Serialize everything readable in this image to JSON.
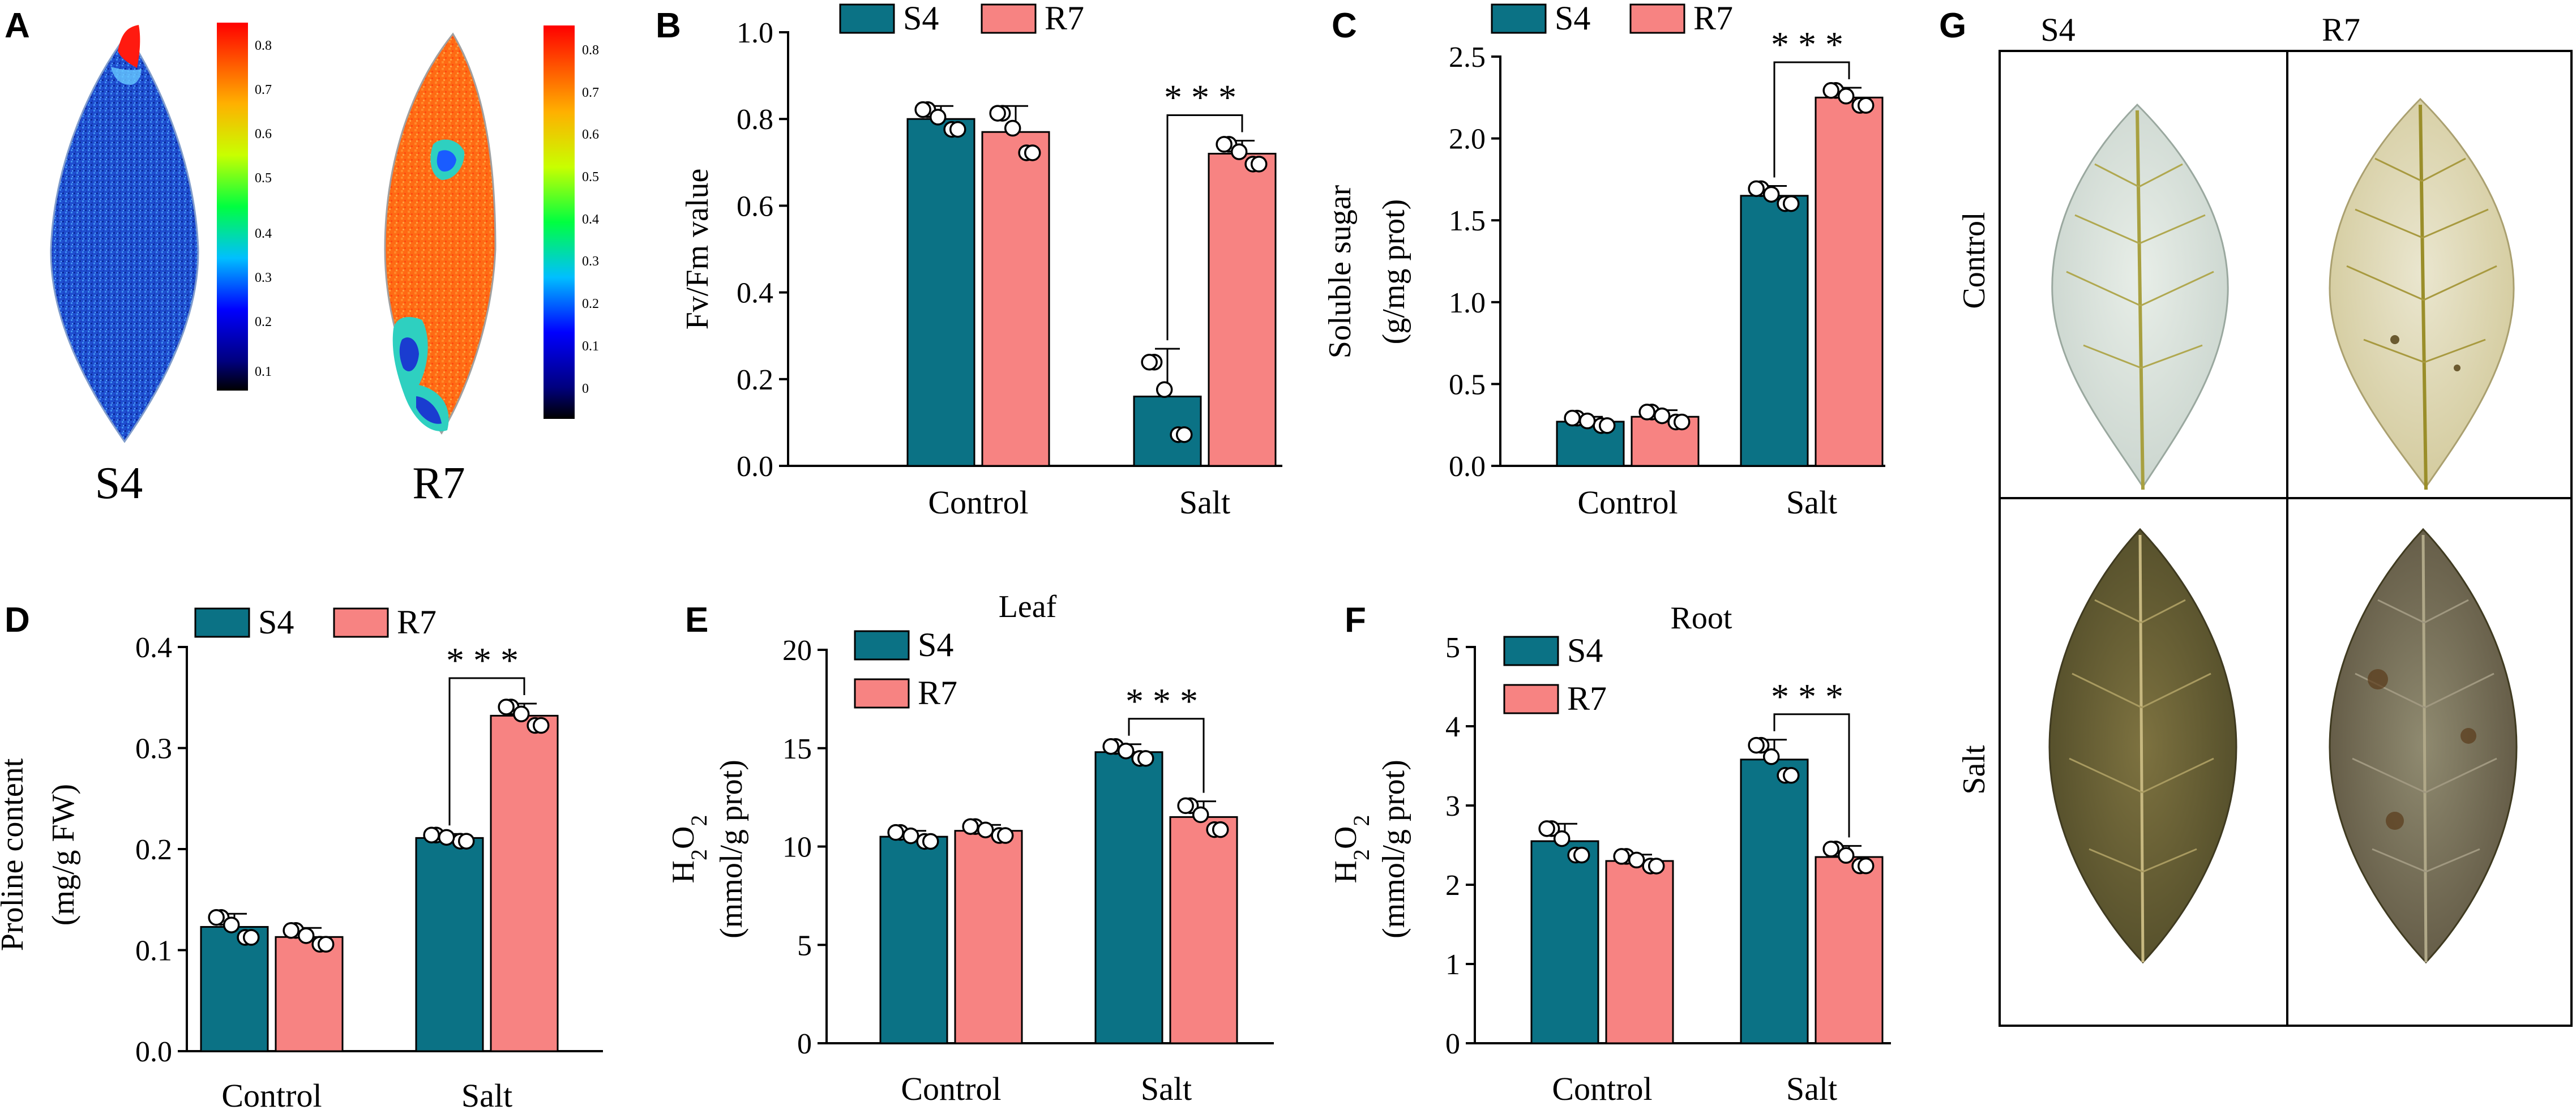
{
  "colors": {
    "S4": "#0b7285",
    "R7": "#f78382",
    "axis": "#000000"
  },
  "panel_a": {
    "letter": "A",
    "leaf_labels": [
      "S4",
      "R7"
    ],
    "colorbar_s4_ticks": [
      "0.8",
      "0.7",
      "0.6",
      "0.5",
      "0.4",
      "0.3",
      "0.2",
      "0.1"
    ],
    "colorbar_r7_ticks": [
      "0.8",
      "0.7",
      "0.6",
      "0.5",
      "0.4",
      "0.3",
      "0.2",
      "0.1",
      "0"
    ]
  },
  "panel_g": {
    "letter": "G",
    "column_labels": [
      "S4",
      "R7"
    ],
    "row_labels": [
      "Control",
      "Salt"
    ]
  },
  "chart_data": [
    {
      "id": "B",
      "type": "bar",
      "letter": "B",
      "title": "",
      "categories": [
        "Control",
        "Salt"
      ],
      "ylabel": [
        "Fv/Fm value"
      ],
      "ylim": [
        0,
        1.0
      ],
      "yticks": [
        "0.0",
        "0.2",
        "0.4",
        "0.6",
        "0.8",
        "1.0"
      ],
      "legend": [
        "S4",
        "R7"
      ],
      "legend_layout": "horizontal",
      "series": [
        {
          "name": "S4",
          "values": [
            0.8,
            0.16
          ],
          "errors": [
            0.03,
            0.11
          ]
        },
        {
          "name": "R7",
          "values": [
            0.77,
            0.72
          ],
          "errors": [
            0.06,
            0.03
          ]
        }
      ],
      "significance": {
        "category": "Salt",
        "label": "***"
      }
    },
    {
      "id": "C",
      "type": "bar",
      "letter": "C",
      "title": "",
      "categories": [
        "Control",
        "Salt"
      ],
      "ylabel": [
        "Soluble sugar",
        "(g/mg prot)"
      ],
      "ylim": [
        0,
        2.5
      ],
      "yticks": [
        "0.0",
        "0.5",
        "1.0",
        "1.5",
        "2.0",
        "2.5"
      ],
      "legend": [
        "S4",
        "R7"
      ],
      "legend_layout": "horizontal",
      "series": [
        {
          "name": "S4",
          "values": [
            0.27,
            1.65
          ],
          "errors": [
            0.03,
            0.06
          ]
        },
        {
          "name": "R7",
          "values": [
            0.3,
            2.25
          ],
          "errors": [
            0.04,
            0.06
          ]
        }
      ],
      "significance": {
        "category": "Salt",
        "label": "***"
      }
    },
    {
      "id": "D",
      "type": "bar",
      "letter": "D",
      "title": "",
      "categories": [
        "Control",
        "Salt"
      ],
      "ylabel": [
        "Proline content",
        "(mg/g FW)"
      ],
      "ylim": [
        0,
        0.4
      ],
      "yticks": [
        "0.0",
        "0.1",
        "0.2",
        "0.3",
        "0.4"
      ],
      "legend": [
        "S4",
        "R7"
      ],
      "legend_layout": "horizontal",
      "series": [
        {
          "name": "S4",
          "values": [
            0.123,
            0.211
          ],
          "errors": [
            0.013,
            0.004
          ]
        },
        {
          "name": "R7",
          "values": [
            0.113,
            0.332
          ],
          "errors": [
            0.009,
            0.012
          ]
        }
      ],
      "significance": {
        "category": "Salt",
        "label": "***"
      }
    },
    {
      "id": "E",
      "type": "bar",
      "letter": "E",
      "title": "Leaf",
      "categories": [
        "Control",
        "Salt"
      ],
      "ylabel": [
        "H2O2",
        "(mmol/g prot)"
      ],
      "ylim": [
        0,
        20
      ],
      "yticks": [
        "0",
        "5",
        "10",
        "15",
        "20"
      ],
      "legend": [
        "S4",
        "R7"
      ],
      "legend_layout": "vertical",
      "series": [
        {
          "name": "S4",
          "values": [
            10.5,
            14.8
          ],
          "errors": [
            0.3,
            0.4
          ]
        },
        {
          "name": "R7",
          "values": [
            10.8,
            11.5
          ],
          "errors": [
            0.3,
            0.8
          ]
        }
      ],
      "significance": {
        "category": "Salt",
        "label": "***"
      }
    },
    {
      "id": "F",
      "type": "bar",
      "letter": "F",
      "title": "Root",
      "categories": [
        "Control",
        "Salt"
      ],
      "ylabel": [
        "H2O2",
        "(mmol/g prot)"
      ],
      "ylim": [
        0,
        5
      ],
      "yticks": [
        "0",
        "1",
        "2",
        "3",
        "4",
        "5"
      ],
      "legend": [
        "S4",
        "R7"
      ],
      "legend_layout": "vertical",
      "series": [
        {
          "name": "S4",
          "values": [
            2.55,
            3.58
          ],
          "errors": [
            0.22,
            0.25
          ]
        },
        {
          "name": "R7",
          "values": [
            2.3,
            2.35
          ],
          "errors": [
            0.08,
            0.14
          ]
        }
      ],
      "significance": {
        "category": "Salt",
        "label": "***"
      }
    }
  ]
}
